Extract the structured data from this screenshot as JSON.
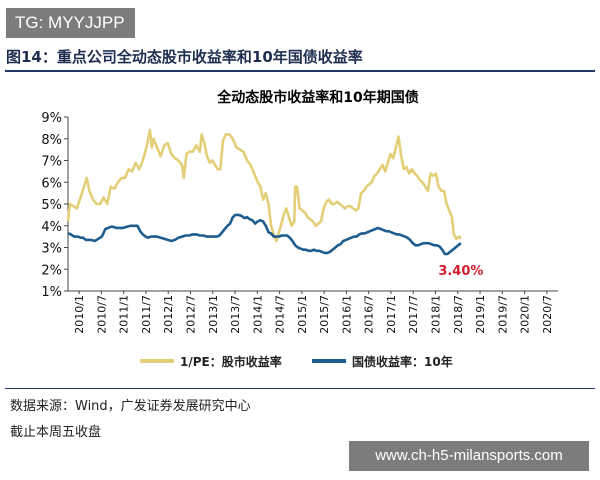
{
  "watermark_top": "TG: MYYJJPP",
  "figure_title": "图14：重点公司全动态股市收益率和10年国债收益率",
  "source_text": "数据来源：Wind，广发证券发展研究中心",
  "note_text": "截止本周五收盘",
  "watermark_bottom": "www.ch-h5-milansports.com",
  "chart_data": {
    "type": "line",
    "title": "全动态股市收益率和10年期国债",
    "xlabel": "",
    "ylabel": "",
    "ylim": [
      1,
      9
    ],
    "yticks": [
      "9%",
      "8%",
      "7%",
      "6%",
      "5%",
      "4%",
      "3%",
      "2%",
      "1%"
    ],
    "x_tick_labels": [
      "2010/1",
      "2010/7",
      "2011/1",
      "2011/7",
      "2012/1",
      "2012/7",
      "2013/1",
      "2013/7",
      "2014/1",
      "2014/7",
      "2015/1",
      "2015/7",
      "2016/1",
      "2016/7",
      "2017/1",
      "2017/7",
      "2018/1",
      "2018/7",
      "2019/1",
      "2019/7",
      "2020/1",
      "2020/7"
    ],
    "x_range": [
      2010.0,
      2021.0
    ],
    "legend_position": "bottom",
    "annotation": {
      "text": "3.40%",
      "color": "#d0202e"
    },
    "series": [
      {
        "name": "1/PE：股市收益率",
        "color": "#e3cf77",
        "points": [
          [
            2010.0,
            4.2
          ],
          [
            2010.04,
            5.0
          ],
          [
            2010.12,
            4.9
          ],
          [
            2010.2,
            4.8
          ],
          [
            2010.28,
            5.3
          ],
          [
            2010.36,
            5.8
          ],
          [
            2010.42,
            6.2
          ],
          [
            2010.48,
            5.6
          ],
          [
            2010.56,
            5.2
          ],
          [
            2010.64,
            5.0
          ],
          [
            2010.72,
            5.0
          ],
          [
            2010.8,
            5.3
          ],
          [
            2010.88,
            5.0
          ],
          [
            2010.96,
            5.8
          ],
          [
            2011.04,
            5.7
          ],
          [
            2011.12,
            6.0
          ],
          [
            2011.2,
            6.2
          ],
          [
            2011.28,
            6.2
          ],
          [
            2011.36,
            6.6
          ],
          [
            2011.44,
            6.5
          ],
          [
            2011.52,
            6.9
          ],
          [
            2011.6,
            6.6
          ],
          [
            2011.68,
            7.0
          ],
          [
            2011.76,
            7.6
          ],
          [
            2011.84,
            8.4
          ],
          [
            2011.88,
            7.6
          ],
          [
            2011.92,
            8.0
          ],
          [
            2012.0,
            7.6
          ],
          [
            2012.08,
            7.2
          ],
          [
            2012.16,
            7.7
          ],
          [
            2012.24,
            7.8
          ],
          [
            2012.32,
            7.3
          ],
          [
            2012.4,
            7.1
          ],
          [
            2012.48,
            7.0
          ],
          [
            2012.56,
            6.8
          ],
          [
            2012.6,
            6.2
          ],
          [
            2012.66,
            7.3
          ],
          [
            2012.72,
            7.4
          ],
          [
            2012.8,
            7.4
          ],
          [
            2012.88,
            7.7
          ],
          [
            2012.96,
            7.4
          ],
          [
            2013.0,
            8.2
          ],
          [
            2013.06,
            7.8
          ],
          [
            2013.12,
            7.2
          ],
          [
            2013.18,
            6.9
          ],
          [
            2013.24,
            7.0
          ],
          [
            2013.3,
            6.8
          ],
          [
            2013.36,
            6.6
          ],
          [
            2013.42,
            6.6
          ],
          [
            2013.48,
            7.9
          ],
          [
            2013.54,
            8.2
          ],
          [
            2013.62,
            8.2
          ],
          [
            2013.7,
            8.0
          ],
          [
            2013.78,
            7.6
          ],
          [
            2013.86,
            7.5
          ],
          [
            2013.94,
            7.4
          ],
          [
            2014.02,
            7.0
          ],
          [
            2014.1,
            6.8
          ],
          [
            2014.18,
            6.4
          ],
          [
            2014.26,
            6.0
          ],
          [
            2014.32,
            5.8
          ],
          [
            2014.38,
            5.2
          ],
          [
            2014.44,
            5.5
          ],
          [
            2014.5,
            5.0
          ],
          [
            2014.56,
            4.0
          ],
          [
            2014.62,
            3.6
          ],
          [
            2014.68,
            3.3
          ],
          [
            2014.72,
            3.6
          ],
          [
            2014.78,
            4.0
          ],
          [
            2014.84,
            4.5
          ],
          [
            2014.9,
            4.8
          ],
          [
            2014.96,
            4.4
          ],
          [
            2015.02,
            4.0
          ],
          [
            2015.08,
            4.2
          ],
          [
            2015.1,
            5.8
          ],
          [
            2015.14,
            5.8
          ],
          [
            2015.2,
            4.8
          ],
          [
            2015.26,
            4.7
          ],
          [
            2015.32,
            4.6
          ],
          [
            2015.38,
            4.4
          ],
          [
            2015.44,
            4.3
          ],
          [
            2015.5,
            4.2
          ],
          [
            2015.56,
            4.0
          ],
          [
            2015.62,
            4.1
          ],
          [
            2015.68,
            4.2
          ],
          [
            2015.74,
            4.8
          ],
          [
            2015.8,
            5.1
          ],
          [
            2015.86,
            5.2
          ],
          [
            2015.92,
            5.0
          ],
          [
            2015.98,
            5.0
          ],
          [
            2016.04,
            5.1
          ],
          [
            2016.1,
            5.0
          ],
          [
            2016.16,
            4.9
          ],
          [
            2016.22,
            4.8
          ],
          [
            2016.28,
            4.9
          ],
          [
            2016.34,
            4.9
          ],
          [
            2016.4,
            4.8
          ],
          [
            2016.46,
            4.7
          ],
          [
            2016.52,
            4.8
          ],
          [
            2016.58,
            5.5
          ],
          [
            2016.64,
            5.6
          ],
          [
            2016.7,
            5.8
          ],
          [
            2016.76,
            5.9
          ],
          [
            2016.82,
            6.0
          ],
          [
            2016.88,
            6.3
          ],
          [
            2016.94,
            6.4
          ],
          [
            2017.0,
            6.6
          ],
          [
            2017.06,
            6.8
          ],
          [
            2017.12,
            6.5
          ],
          [
            2017.18,
            6.9
          ],
          [
            2017.24,
            7.3
          ],
          [
            2017.3,
            7.1
          ],
          [
            2017.36,
            7.6
          ],
          [
            2017.42,
            8.1
          ],
          [
            2017.48,
            7.2
          ],
          [
            2017.54,
            6.6
          ],
          [
            2017.6,
            6.7
          ],
          [
            2017.66,
            6.4
          ],
          [
            2017.72,
            6.6
          ],
          [
            2017.78,
            6.4
          ],
          [
            2017.84,
            6.3
          ],
          [
            2017.9,
            6.1
          ],
          [
            2017.96,
            6.0
          ],
          [
            2018.02,
            5.8
          ],
          [
            2018.08,
            5.6
          ],
          [
            2018.14,
            6.4
          ],
          [
            2018.2,
            6.3
          ],
          [
            2018.26,
            6.4
          ],
          [
            2018.32,
            5.8
          ],
          [
            2018.38,
            5.6
          ],
          [
            2018.44,
            5.6
          ],
          [
            2018.5,
            5.0
          ],
          [
            2018.56,
            4.7
          ],
          [
            2018.62,
            4.4
          ],
          [
            2018.66,
            3.6
          ],
          [
            2018.72,
            3.4
          ],
          [
            2018.78,
            3.5
          ],
          [
            2018.82,
            3.4
          ]
        ]
      },
      {
        "name": "国债收益率：10年",
        "color": "#1f5d8e",
        "points": [
          [
            2010.0,
            3.65
          ],
          [
            2010.06,
            3.6
          ],
          [
            2010.14,
            3.5
          ],
          [
            2010.22,
            3.5
          ],
          [
            2010.28,
            3.45
          ],
          [
            2010.34,
            3.45
          ],
          [
            2010.4,
            3.35
          ],
          [
            2010.46,
            3.35
          ],
          [
            2010.52,
            3.35
          ],
          [
            2010.6,
            3.3
          ],
          [
            2010.68,
            3.4
          ],
          [
            2010.76,
            3.5
          ],
          [
            2010.84,
            3.85
          ],
          [
            2010.9,
            3.9
          ],
          [
            2010.96,
            3.95
          ],
          [
            2011.02,
            3.95
          ],
          [
            2011.08,
            3.9
          ],
          [
            2011.16,
            3.9
          ],
          [
            2011.24,
            3.9
          ],
          [
            2011.32,
            3.95
          ],
          [
            2011.4,
            4.0
          ],
          [
            2011.48,
            4.0
          ],
          [
            2011.56,
            4.0
          ],
          [
            2011.62,
            3.75
          ],
          [
            2011.68,
            3.6
          ],
          [
            2011.74,
            3.5
          ],
          [
            2011.8,
            3.45
          ],
          [
            2011.86,
            3.5
          ],
          [
            2011.92,
            3.5
          ],
          [
            2012.0,
            3.5
          ],
          [
            2012.08,
            3.45
          ],
          [
            2012.16,
            3.4
          ],
          [
            2012.24,
            3.35
          ],
          [
            2012.32,
            3.3
          ],
          [
            2012.4,
            3.35
          ],
          [
            2012.48,
            3.45
          ],
          [
            2012.56,
            3.5
          ],
          [
            2012.64,
            3.55
          ],
          [
            2012.72,
            3.55
          ],
          [
            2012.8,
            3.6
          ],
          [
            2012.88,
            3.6
          ],
          [
            2012.96,
            3.55
          ],
          [
            2013.04,
            3.55
          ],
          [
            2013.12,
            3.5
          ],
          [
            2013.2,
            3.5
          ],
          [
            2013.28,
            3.5
          ],
          [
            2013.34,
            3.5
          ],
          [
            2013.4,
            3.55
          ],
          [
            2013.46,
            3.7
          ],
          [
            2013.52,
            3.85
          ],
          [
            2013.58,
            4.0
          ],
          [
            2013.64,
            4.1
          ],
          [
            2013.7,
            4.4
          ],
          [
            2013.76,
            4.5
          ],
          [
            2013.84,
            4.5
          ],
          [
            2013.9,
            4.45
          ],
          [
            2013.96,
            4.35
          ],
          [
            2014.02,
            4.4
          ],
          [
            2014.08,
            4.3
          ],
          [
            2014.14,
            4.25
          ],
          [
            2014.2,
            4.1
          ],
          [
            2014.26,
            4.2
          ],
          [
            2014.32,
            4.25
          ],
          [
            2014.38,
            4.2
          ],
          [
            2014.44,
            4.0
          ],
          [
            2014.5,
            3.7
          ],
          [
            2014.56,
            3.65
          ],
          [
            2014.62,
            3.5
          ],
          [
            2014.68,
            3.5
          ],
          [
            2014.74,
            3.5
          ],
          [
            2014.8,
            3.55
          ],
          [
            2014.86,
            3.55
          ],
          [
            2014.92,
            3.55
          ],
          [
            2014.98,
            3.45
          ],
          [
            2015.04,
            3.3
          ],
          [
            2015.1,
            3.1
          ],
          [
            2015.16,
            3.0
          ],
          [
            2015.22,
            2.95
          ],
          [
            2015.28,
            2.9
          ],
          [
            2015.34,
            2.9
          ],
          [
            2015.4,
            2.85
          ],
          [
            2015.46,
            2.85
          ],
          [
            2015.52,
            2.9
          ],
          [
            2015.58,
            2.85
          ],
          [
            2015.64,
            2.85
          ],
          [
            2015.7,
            2.8
          ],
          [
            2015.76,
            2.75
          ],
          [
            2015.82,
            2.75
          ],
          [
            2015.88,
            2.8
          ],
          [
            2015.94,
            2.9
          ],
          [
            2016.0,
            3.0
          ],
          [
            2016.06,
            3.1
          ],
          [
            2016.12,
            3.15
          ],
          [
            2016.18,
            3.3
          ],
          [
            2016.24,
            3.35
          ],
          [
            2016.3,
            3.4
          ],
          [
            2016.36,
            3.45
          ],
          [
            2016.42,
            3.5
          ],
          [
            2016.48,
            3.5
          ],
          [
            2016.54,
            3.6
          ],
          [
            2016.6,
            3.65
          ],
          [
            2016.66,
            3.65
          ],
          [
            2016.72,
            3.7
          ],
          [
            2016.78,
            3.75
          ],
          [
            2016.84,
            3.8
          ],
          [
            2016.9,
            3.85
          ],
          [
            2016.96,
            3.9
          ],
          [
            2017.02,
            3.85
          ],
          [
            2017.08,
            3.8
          ],
          [
            2017.14,
            3.75
          ],
          [
            2017.2,
            3.75
          ],
          [
            2017.26,
            3.7
          ],
          [
            2017.32,
            3.65
          ],
          [
            2017.38,
            3.6
          ],
          [
            2017.44,
            3.6
          ],
          [
            2017.5,
            3.55
          ],
          [
            2017.56,
            3.5
          ],
          [
            2017.62,
            3.45
          ],
          [
            2017.68,
            3.35
          ],
          [
            2017.74,
            3.2
          ],
          [
            2017.8,
            3.1
          ],
          [
            2017.86,
            3.1
          ],
          [
            2017.92,
            3.15
          ],
          [
            2017.98,
            3.2
          ],
          [
            2018.04,
            3.2
          ],
          [
            2018.1,
            3.2
          ],
          [
            2018.16,
            3.15
          ],
          [
            2018.22,
            3.1
          ],
          [
            2018.28,
            3.1
          ],
          [
            2018.34,
            3.05
          ],
          [
            2018.4,
            2.9
          ],
          [
            2018.46,
            2.7
          ],
          [
            2018.52,
            2.7
          ],
          [
            2018.58,
            2.8
          ],
          [
            2018.64,
            2.9
          ],
          [
            2018.7,
            3.0
          ],
          [
            2018.76,
            3.1
          ],
          [
            2018.82,
            3.2
          ]
        ]
      }
    ]
  }
}
